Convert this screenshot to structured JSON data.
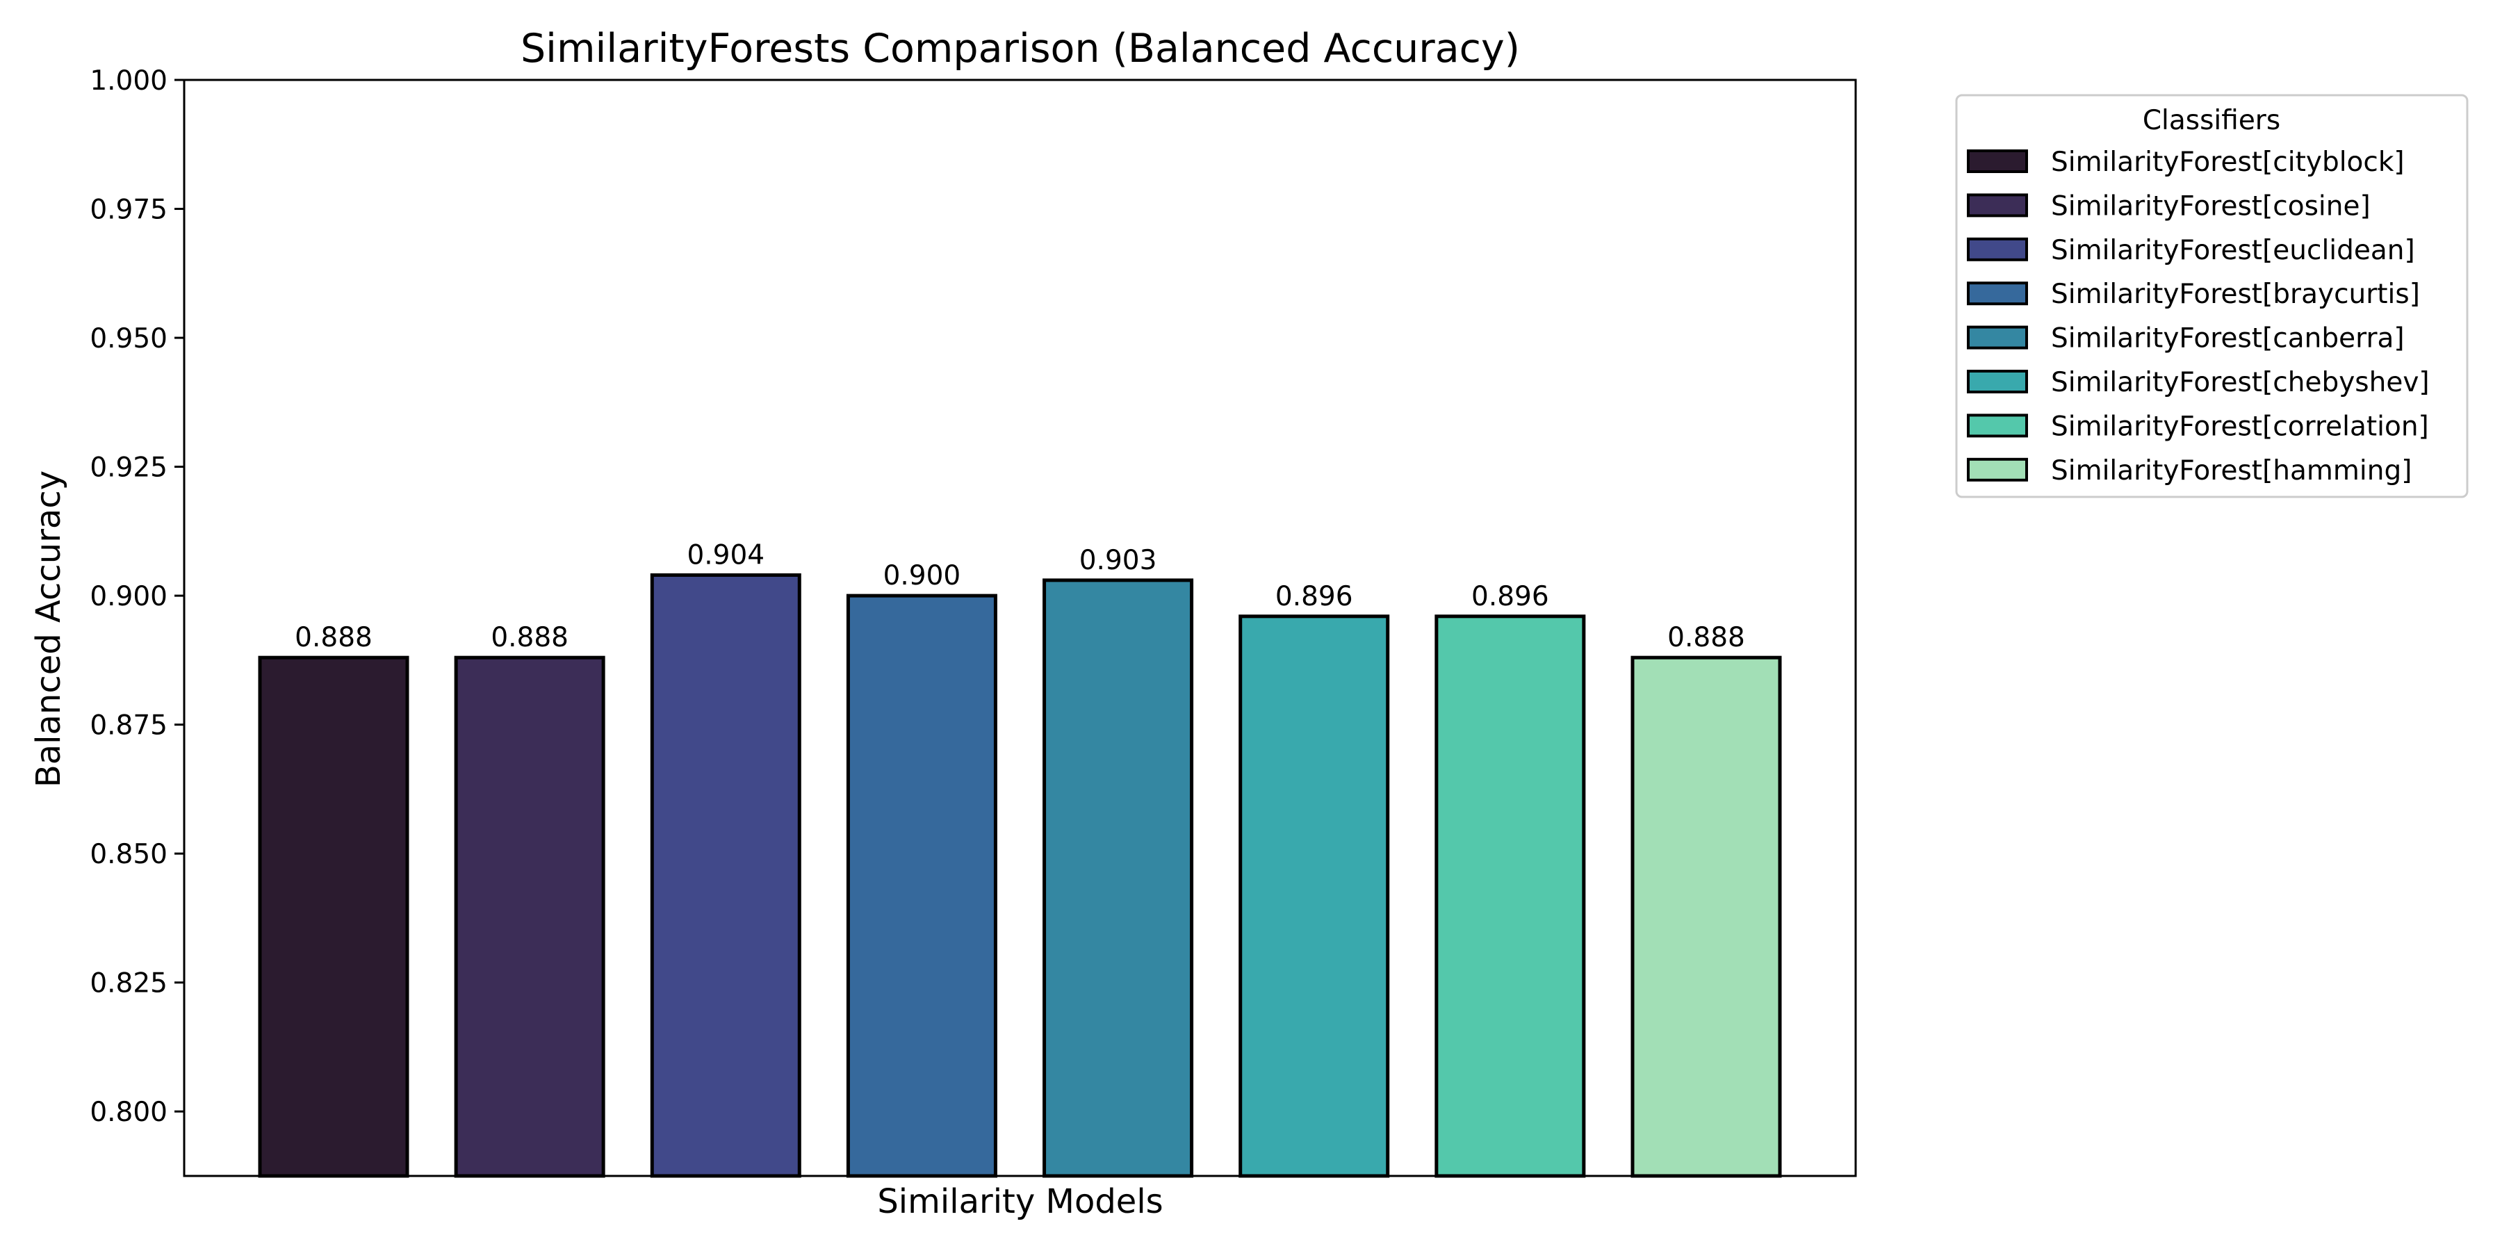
{
  "chart_data": {
    "type": "bar",
    "title": "SimilarityForests Comparison (Balanced Accuracy)",
    "xlabel": "Similarity Models",
    "ylabel": "Balanced Accuracy",
    "ylim": [
      0.7875,
      1.0
    ],
    "yticks": [
      "0.800",
      "0.825",
      "0.850",
      "0.875",
      "0.900",
      "0.925",
      "0.950",
      "0.975",
      "1.000"
    ],
    "grid": false,
    "legend": {
      "title": "Classifiers",
      "placement": "outside upper right"
    },
    "series": [
      {
        "name": "SimilarityForest[cityblock]",
        "value": 0.888,
        "label": "0.888",
        "color": "#2b1b2f"
      },
      {
        "name": "SimilarityForest[cosine]",
        "value": 0.888,
        "label": "0.888",
        "color": "#3c2d57"
      },
      {
        "name": "SimilarityForest[euclidean]",
        "value": 0.904,
        "label": "0.904",
        "color": "#41498a"
      },
      {
        "name": "SimilarityForest[braycurtis]",
        "value": 0.9,
        "label": "0.900",
        "color": "#36699c"
      },
      {
        "name": "SimilarityForest[canberra]",
        "value": 0.903,
        "label": "0.903",
        "color": "#3487a2"
      },
      {
        "name": "SimilarityForest[chebyshev]",
        "value": 0.896,
        "label": "0.896",
        "color": "#39a9ad"
      },
      {
        "name": "SimilarityForest[correlation]",
        "value": 0.896,
        "label": "0.896",
        "color": "#54c8ab"
      },
      {
        "name": "SimilarityForest[hamming]",
        "value": 0.888,
        "label": "0.888",
        "color": "#a2dfb6"
      }
    ]
  }
}
